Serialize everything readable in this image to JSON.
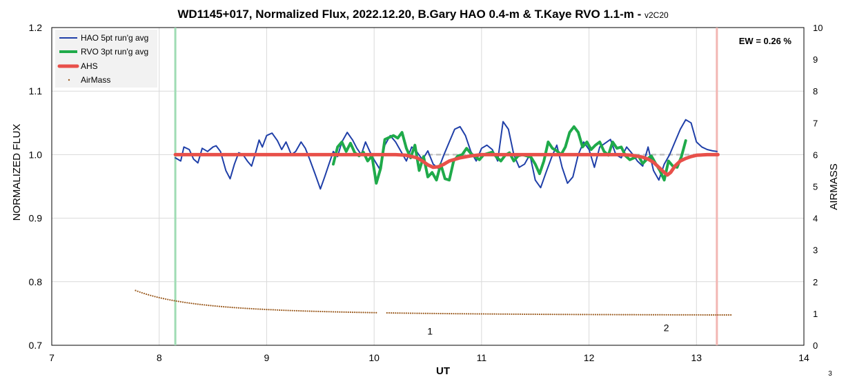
{
  "chart_data": {
    "type": "line",
    "title": "WD1145+017, Normalized Flux, 2022.12.20, B.Gary HAO 0.4-m & T.Kaye RVO 1.1-m - ",
    "title_version": "v2C20",
    "xlabel": "UT",
    "ylabel": "NORMALIZED FLUX",
    "y2label": "AIRMASS",
    "xlim": [
      7,
      14
    ],
    "ylim": [
      0.7,
      1.2
    ],
    "y2lim": [
      0,
      10
    ],
    "x_ticks": [
      "7",
      "8",
      "9",
      "10",
      "11",
      "12",
      "13",
      "14"
    ],
    "y_ticks": [
      "0.7",
      "0.8",
      "0.9",
      "1.0",
      "1.1",
      "1.2"
    ],
    "y2_ticks": [
      "0",
      "1",
      "2",
      "3",
      "4",
      "5",
      "6",
      "7",
      "8",
      "9",
      "10"
    ],
    "grid": true,
    "legend_position": "top-left",
    "annotation_ew": "EW = 0.26 %",
    "page_number": "3",
    "annotations": [
      {
        "text": "1",
        "x": 10.52,
        "y": 0.717
      },
      {
        "text": "2",
        "x": 12.72,
        "y": 0.722
      }
    ],
    "vertical_markers": [
      {
        "x": 8.15,
        "color": "#9fdcb4"
      },
      {
        "x": 13.19,
        "color": "#f2b6b3"
      }
    ],
    "reference_line": {
      "y": 1.0,
      "x_start": 10.5,
      "x_end": 13.0,
      "color": "#bfbfbf"
    },
    "series": [
      {
        "name": "HAO 5pt run'g avg",
        "color": "#1f3fa8",
        "axis": "left",
        "x": [
          8.15,
          8.2,
          8.23,
          8.28,
          8.32,
          8.36,
          8.4,
          8.45,
          8.5,
          8.53,
          8.57,
          8.62,
          8.66,
          8.7,
          8.74,
          8.78,
          8.82,
          8.86,
          8.9,
          8.93,
          8.96,
          9.0,
          9.05,
          9.1,
          9.14,
          9.18,
          9.23,
          9.27,
          9.32,
          9.36,
          9.4,
          9.45,
          9.5,
          9.54,
          9.58,
          9.62,
          9.66,
          9.7,
          9.75,
          9.8,
          9.84,
          9.88,
          9.92,
          9.96,
          10.0,
          10.05,
          10.1,
          10.15,
          10.2,
          10.25,
          10.3,
          10.35,
          10.4,
          10.45,
          10.5,
          10.55,
          10.6,
          10.65,
          10.7,
          10.75,
          10.8,
          10.85,
          10.9,
          10.95,
          11.0,
          11.05,
          11.1,
          11.15,
          11.2,
          11.25,
          11.3,
          11.35,
          11.4,
          11.45,
          11.5,
          11.55,
          11.6,
          11.65,
          11.7,
          11.75,
          11.8,
          11.85,
          11.9,
          11.95,
          12.0,
          12.05,
          12.1,
          12.15,
          12.2,
          12.25,
          12.3,
          12.35,
          12.4,
          12.45,
          12.5,
          12.55,
          12.6,
          12.65,
          12.7,
          12.75,
          12.8,
          12.85,
          12.9,
          12.95,
          13.0,
          13.05,
          13.1,
          13.15,
          13.19
        ],
        "y": [
          0.995,
          0.99,
          1.012,
          1.008,
          0.993,
          0.987,
          1.01,
          1.005,
          1.012,
          1.014,
          1.005,
          0.975,
          0.962,
          0.985,
          1.003,
          1.0,
          0.99,
          0.982,
          1.005,
          1.023,
          1.012,
          1.03,
          1.034,
          1.022,
          1.008,
          1.02,
          1.0,
          1.005,
          1.02,
          1.01,
          0.993,
          0.97,
          0.946,
          0.965,
          0.985,
          1.005,
          0.997,
          1.02,
          1.035,
          1.023,
          1.01,
          1.0,
          1.02,
          1.005,
          0.992,
          0.978,
          1.015,
          1.03,
          1.02,
          1.005,
          0.99,
          1.012,
          1.004,
          0.992,
          1.006,
          0.985,
          0.978,
          1.0,
          1.02,
          1.04,
          1.044,
          1.03,
          1.005,
          0.99,
          1.01,
          1.015,
          1.008,
          0.99,
          1.052,
          1.04,
          1.0,
          0.98,
          0.985,
          1.0,
          0.96,
          0.948,
          0.972,
          0.995,
          1.015,
          0.98,
          0.955,
          0.965,
          1.0,
          1.02,
          1.008,
          0.98,
          1.012,
          1.018,
          1.024,
          1.0,
          0.995,
          1.012,
          1.002,
          0.99,
          0.982,
          1.012,
          0.975,
          0.96,
          0.985,
          1.0,
          1.02,
          1.04,
          1.055,
          1.05,
          1.02,
          1.012,
          1.008,
          1.006,
          1.005
        ],
        "width": 2
      },
      {
        "name": "RVO 3pt run'g avg",
        "color": "#1faa4a",
        "axis": "left",
        "x": [
          9.62,
          9.66,
          9.7,
          9.74,
          9.78,
          9.82,
          9.86,
          9.9,
          9.94,
          9.98,
          10.02,
          10.06,
          10.1,
          10.14,
          10.18,
          10.22,
          10.26,
          10.3,
          10.34,
          10.38,
          10.42,
          10.46,
          10.5,
          10.54,
          10.58,
          10.62,
          10.66,
          10.7,
          10.74,
          10.78,
          10.82,
          10.86,
          10.9,
          10.94,
          10.98,
          11.02,
          11.06,
          11.1,
          11.14,
          11.18,
          11.22,
          11.26,
          11.3,
          11.34,
          11.38,
          11.42,
          11.46,
          11.5,
          11.54,
          11.58,
          11.62,
          11.66,
          11.7,
          11.74,
          11.78,
          11.82,
          11.86,
          11.9,
          11.94,
          11.98,
          12.02,
          12.06,
          12.1,
          12.14,
          12.18,
          12.22,
          12.26,
          12.3,
          12.34,
          12.38,
          12.42,
          12.46,
          12.5,
          12.54,
          12.58,
          12.62,
          12.66,
          12.7,
          12.74,
          12.78,
          12.82,
          12.86,
          12.9
        ],
        "y": [
          0.985,
          1.012,
          1.02,
          1.005,
          1.018,
          1.003,
          0.998,
          1.004,
          0.99,
          0.998,
          0.955,
          0.978,
          1.024,
          1.027,
          1.03,
          1.026,
          1.035,
          1.01,
          0.995,
          1.015,
          0.975,
          0.997,
          0.965,
          0.972,
          0.96,
          0.985,
          0.962,
          0.96,
          0.99,
          0.998,
          1.0,
          1.01,
          1.002,
          0.997,
          0.992,
          1.0,
          1.002,
          1.004,
          0.996,
          0.99,
          0.999,
          1.003,
          0.99,
          0.998,
          1.0,
          0.998,
          0.996,
          0.985,
          0.97,
          0.99,
          1.02,
          1.01,
          1.006,
          1.0,
          1.012,
          1.035,
          1.044,
          1.035,
          1.012,
          1.02,
          1.008,
          1.015,
          1.02,
          1.005,
          0.999,
          1.02,
          1.01,
          1.012,
          0.998,
          0.992,
          0.995,
          0.998,
          0.986,
          0.993,
          0.998,
          0.986,
          0.975,
          0.96,
          0.99,
          0.982,
          0.98,
          0.997,
          1.022
        ],
        "width": 4
      },
      {
        "name": "AHS",
        "color": "#e8504a",
        "axis": "left",
        "x": [
          8.15,
          8.5,
          9.0,
          9.5,
          10.0,
          10.2,
          10.3,
          10.4,
          10.45,
          10.5,
          10.55,
          10.6,
          10.65,
          10.7,
          10.8,
          10.9,
          11.0,
          11.5,
          12.0,
          12.3,
          12.4,
          12.5,
          12.55,
          12.6,
          12.65,
          12.7,
          12.73,
          12.76,
          12.8,
          12.85,
          12.9,
          12.95,
          13.0,
          13.1,
          13.2
        ],
        "y": [
          1.0,
          1.0,
          1.0,
          1.0,
          1.0,
          1.0,
          0.999,
          0.995,
          0.99,
          0.984,
          0.98,
          0.981,
          0.985,
          0.99,
          0.995,
          0.998,
          1.0,
          1.0,
          1.0,
          1.0,
          0.999,
          0.996,
          0.993,
          0.988,
          0.98,
          0.972,
          0.968,
          0.972,
          0.982,
          0.99,
          0.994,
          0.997,
          0.999,
          1.0,
          1.0
        ],
        "width": 5
      },
      {
        "name": "AirMass",
        "color": "#9a5a1e",
        "axis": "right",
        "marker": "dots",
        "segments": [
          [
            7.78,
            10.02
          ],
          [
            10.12,
            13.32
          ]
        ]
      }
    ]
  }
}
